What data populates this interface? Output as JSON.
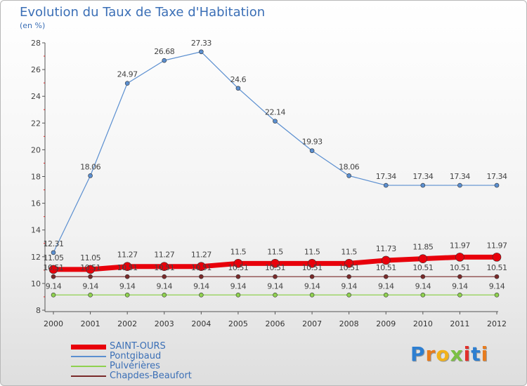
{
  "header": {
    "title": "Evolution du Taux de Taxe d'Habitation",
    "subtitle": "(en %)"
  },
  "logo": {
    "text": "Proxiti",
    "colors": [
      "#2e7fd1",
      "#e87c1e",
      "#f2b21a",
      "#7bc043",
      "#e2302b",
      "#2e7fd1",
      "#e87c1e"
    ]
  },
  "chart_data": {
    "type": "line",
    "title": "Evolution du Taux de Taxe d'Habitation",
    "subtitle": "(en %)",
    "xlabel": "",
    "ylabel": "",
    "x": [
      "2000",
      "2001",
      "2002",
      "2003",
      "2004",
      "2005",
      "2006",
      "2007",
      "2008",
      "2009",
      "2010",
      "2011",
      "2012"
    ],
    "ylim": [
      8,
      28
    ],
    "yticks": [
      8,
      10,
      12,
      14,
      16,
      18,
      20,
      22,
      24,
      26,
      28
    ],
    "grid": false,
    "legend_position": "bottom-left",
    "series": [
      {
        "name": "SAINT-OURS",
        "color": "#e8000b",
        "values": [
          11.05,
          11.05,
          11.27,
          11.27,
          11.27,
          11.5,
          11.5,
          11.5,
          11.5,
          11.73,
          11.85,
          11.97,
          11.97
        ],
        "labels": [
          "11.05",
          "11.05",
          "11.27",
          "11.27",
          "11.27",
          "11.5",
          "11.5",
          "11.5",
          "11.5",
          "11.73",
          "11.85",
          "11.97",
          "11.97"
        ]
      },
      {
        "name": "Pontgibaud",
        "color": "#5b8fd0",
        "values": [
          12.31,
          18.06,
          24.97,
          26.68,
          27.33,
          24.6,
          22.14,
          19.93,
          18.06,
          17.34,
          17.34,
          17.34,
          17.34
        ],
        "labels": [
          "12.31",
          "18.06",
          "24.97",
          "26.68",
          "27.33",
          "24.6",
          "22.14",
          "19.93",
          "18.06",
          "17.34",
          "17.34",
          "17.34",
          "17.34"
        ]
      },
      {
        "name": "Pulvérières",
        "color": "#8fd14f",
        "values": [
          9.14,
          9.14,
          9.14,
          9.14,
          9.14,
          9.14,
          9.14,
          9.14,
          9.14,
          9.14,
          9.14,
          9.14,
          9.14
        ],
        "labels": [
          "9.14",
          "9.14",
          "9.14",
          "9.14",
          "9.14",
          "9.14",
          "9.14",
          "9.14",
          "9.14",
          "9.14",
          "9.14",
          "9.14",
          "9.14"
        ]
      },
      {
        "name": "Chapdes-Beaufort",
        "color": "#7a2a2a",
        "values": [
          10.51,
          10.51,
          10.51,
          10.51,
          10.51,
          10.51,
          10.51,
          10.51,
          10.51,
          10.51,
          10.51,
          10.51,
          10.51
        ],
        "labels": [
          "10.51",
          "10.51",
          "10.51",
          "10.51",
          "10.51",
          "10.51",
          "10.51",
          "10.51",
          "10.51",
          "10.51",
          "10.51",
          "10.51",
          "10.51"
        ]
      }
    ]
  }
}
